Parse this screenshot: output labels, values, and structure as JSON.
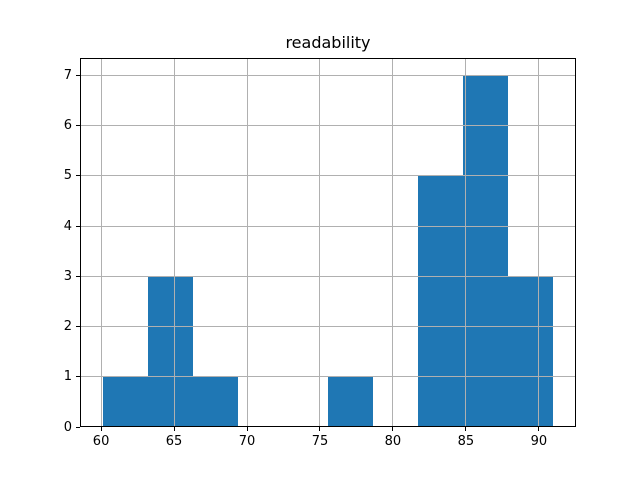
{
  "chart_data": {
    "type": "bar",
    "subtype": "histogram",
    "title": "readability",
    "xlabel": "",
    "ylabel": "",
    "bin_edges": [
      60.1,
      63.19,
      66.28,
      69.37,
      72.46,
      75.55,
      78.64,
      81.73,
      84.82,
      87.91,
      91.0
    ],
    "counts": [
      1,
      3,
      1,
      0,
      0,
      1,
      0,
      5,
      7,
      3
    ],
    "xticks": [
      60,
      65,
      70,
      75,
      80,
      85,
      90
    ],
    "yticks": [
      0,
      1,
      2,
      3,
      4,
      5,
      6,
      7
    ],
    "xlim": [
      58.555,
      92.545
    ],
    "ylim": [
      0,
      7.35
    ],
    "grid": true,
    "legend": false,
    "bar_color": "#1f77b4",
    "grid_color": "#b0b0b0",
    "axis_color": "#000000",
    "background_color": "#ffffff"
  }
}
